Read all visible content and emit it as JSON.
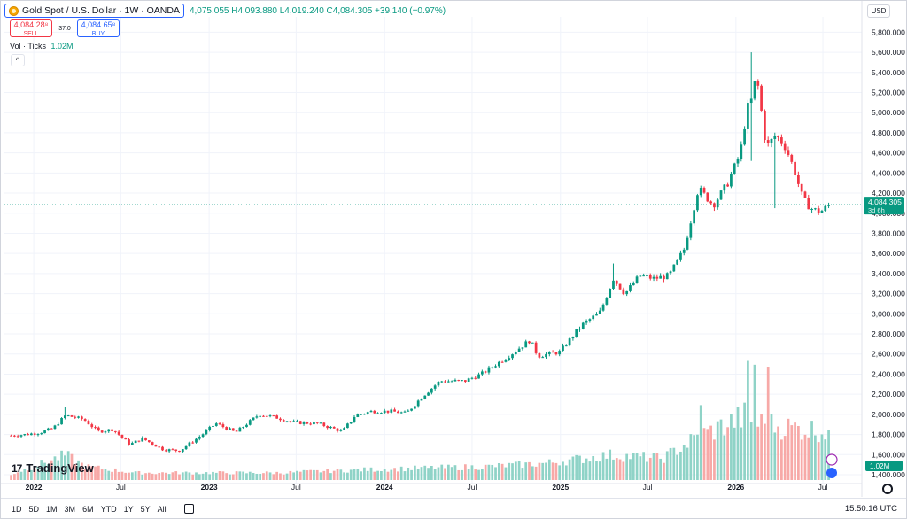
{
  "header": {
    "symbol_title": "Gold Spot / U.S. Dollar · 1W · OANDA",
    "ohlc_text": "4,075.055  H4,093.880  L4,019.240  C4,084.305  +39.140 (+0.97%)",
    "sell_price": "4,084.28⁸",
    "sell_label": "SELL",
    "spread": "37.0",
    "buy_price": "4,084.65⁸",
    "buy_label": "BUY",
    "vol_label": "Vol · Ticks",
    "vol_value": "1.02M",
    "collapse_symbol": "^"
  },
  "price_scale": {
    "currency": "USD",
    "current_price_label": "4,084.305",
    "countdown_label": "3d 6h",
    "volume_label": "1.02M"
  },
  "branding": {
    "logo_mark": "17",
    "logo_text": "TradingView"
  },
  "toolbar": {
    "ranges": [
      "1D",
      "5D",
      "1M",
      "3M",
      "6M",
      "YTD",
      "1Y",
      "5Y",
      "All"
    ],
    "clock": "15:50:16 UTC"
  },
  "colors": {
    "up": "#089981",
    "down": "#f23645",
    "up_vol": "#8fd3c7",
    "down_vol": "#f7a9a7",
    "grid": "#f0f3fa",
    "accent": "#2962ff"
  },
  "chart_data": {
    "type": "candlestick",
    "title": "Gold Spot / U.S. Dollar · 1W · OANDA",
    "ylim": [
      1400,
      5900
    ],
    "y_ticks": [
      1400,
      1600,
      1800,
      2000,
      2200,
      2400,
      2600,
      2800,
      3000,
      3200,
      3400,
      3600,
      3800,
      4000,
      4200,
      4400,
      4600,
      4800,
      5000,
      5200,
      5400,
      5600,
      5800
    ],
    "y_tick_labels": [
      "1,400.000",
      "1,600.000",
      "1,800.000",
      "2,000.000",
      "2,200.000",
      "2,400.000",
      "2,600.000",
      "2,800.000",
      "3,000.000",
      "3,200.000",
      "3,400.000",
      "3,600.000",
      "3,800.000",
      "4,000.000",
      "4,200.000",
      "4,400.000",
      "4,600.000",
      "4,800.000",
      "5,000.000",
      "5,200.000",
      "5,400.000",
      "5,600.000",
      "5,800.000"
    ],
    "x_range": [
      "2021-11-01",
      "2026-09-20"
    ],
    "x_ticks": [
      {
        "date": "2022-01-01",
        "label": "2022"
      },
      {
        "date": "2022-07-01",
        "label": "Jul"
      },
      {
        "date": "2023-01-01",
        "label": "2023"
      },
      {
        "date": "2023-07-01",
        "label": "Jul"
      },
      {
        "date": "2024-01-01",
        "label": "2024"
      },
      {
        "date": "2024-07-01",
        "label": "Jul"
      },
      {
        "date": "2025-01-01",
        "label": "2025"
      },
      {
        "date": "2025-07-01",
        "label": "Jul"
      },
      {
        "date": "2026-01-01",
        "label": "2026"
      },
      {
        "date": "2026-07-01",
        "label": "Jul"
      }
    ],
    "first_candle": "2021-11-15",
    "interval": "1W",
    "current_price": 4084.305,
    "close_anchors": [
      [
        "2021-11-15",
        1790
      ],
      [
        "2021-12-15",
        1800
      ],
      [
        "2022-01-15",
        1820
      ],
      [
        "2022-02-10",
        1860
      ],
      [
        "2022-03-08",
        1990
      ],
      [
        "2022-04-15",
        1950
      ],
      [
        "2022-05-15",
        1830
      ],
      [
        "2022-06-15",
        1850
      ],
      [
        "2022-07-20",
        1700
      ],
      [
        "2022-08-15",
        1760
      ],
      [
        "2022-09-28",
        1650
      ],
      [
        "2022-11-01",
        1640
      ],
      [
        "2022-12-15",
        1790
      ],
      [
        "2023-01-15",
        1910
      ],
      [
        "2023-02-25",
        1820
      ],
      [
        "2023-04-15",
        2000
      ],
      [
        "2023-05-20",
        1970
      ],
      [
        "2023-06-25",
        1920
      ],
      [
        "2023-08-15",
        1910
      ],
      [
        "2023-10-05",
        1830
      ],
      [
        "2023-11-01",
        1990
      ],
      [
        "2023-12-05",
        2030
      ],
      [
        "2024-01-15",
        2030
      ],
      [
        "2024-02-15",
        2010
      ],
      [
        "2024-03-20",
        2180
      ],
      [
        "2024-04-25",
        2330
      ],
      [
        "2024-06-15",
        2330
      ],
      [
        "2024-07-20",
        2400
      ],
      [
        "2024-09-15",
        2580
      ],
      [
        "2024-10-30",
        2740
      ],
      [
        "2024-11-15",
        2580
      ],
      [
        "2024-12-30",
        2620
      ],
      [
        "2025-02-15",
        2890
      ],
      [
        "2025-03-25",
        3020
      ],
      [
        "2025-04-21",
        3350
      ],
      [
        "2025-05-15",
        3200
      ],
      [
        "2025-06-15",
        3380
      ],
      [
        "2025-07-15",
        3350
      ],
      [
        "2025-08-15",
        3380
      ],
      [
        "2025-09-15",
        3640
      ],
      [
        "2025-10-15",
        4250
      ],
      [
        "2025-11-15",
        4080
      ],
      [
        "2025-12-15",
        4300
      ],
      [
        "2026-01-10",
        4600
      ],
      [
        "2026-01-25",
        5050
      ],
      [
        "2026-02-05",
        5150
      ],
      [
        "2026-02-12",
        5400
      ],
      [
        "2026-02-22",
        5050
      ],
      [
        "2026-03-05",
        4650
      ],
      [
        "2026-03-25",
        4780
      ],
      [
        "2026-04-15",
        4650
      ],
      [
        "2026-05-01",
        4450
      ],
      [
        "2026-05-20",
        4150
      ],
      [
        "2026-06-05",
        4050
      ],
      [
        "2026-06-25",
        4010
      ],
      [
        "2026-07-15",
        4084
      ]
    ],
    "special_wicks": [
      {
        "date": "2022-03-08",
        "high": 2075
      },
      {
        "date": "2026-02-01",
        "high": 5600,
        "low": 4520
      },
      {
        "date": "2026-03-22",
        "low": 4050
      },
      {
        "date": "2025-04-21",
        "high": 3500
      }
    ],
    "volume_ylim": [
      0,
      2600000
    ],
    "volume_anchors": [
      [
        "2021-11-15",
        120000
      ],
      [
        "2022-03-08",
        520000
      ],
      [
        "2022-04-20",
        280000
      ],
      [
        "2022-08-01",
        150000
      ],
      [
        "2023-06-01",
        150000
      ],
      [
        "2023-10-01",
        200000
      ],
      [
        "2024-04-01",
        250000
      ],
      [
        "2024-08-01",
        280000
      ],
      [
        "2024-12-01",
        350000
      ],
      [
        "2025-04-15",
        520000
      ],
      [
        "2025-08-01",
        450000
      ],
      [
        "2025-10-15",
        900000
      ],
      [
        "2026-01-25",
        1350000
      ],
      [
        "2026-02-10",
        1200000
      ],
      [
        "2026-04-15",
        1100000
      ],
      [
        "2026-07-15",
        1020000
      ]
    ],
    "volume_spikes": [
      {
        "date": "2026-01-25",
        "value": 2480000
      },
      {
        "date": "2026-02-08",
        "value": 2400000
      },
      {
        "date": "2026-03-08",
        "value": 2360000
      },
      {
        "date": "2025-10-20",
        "value": 1560000
      }
    ]
  }
}
